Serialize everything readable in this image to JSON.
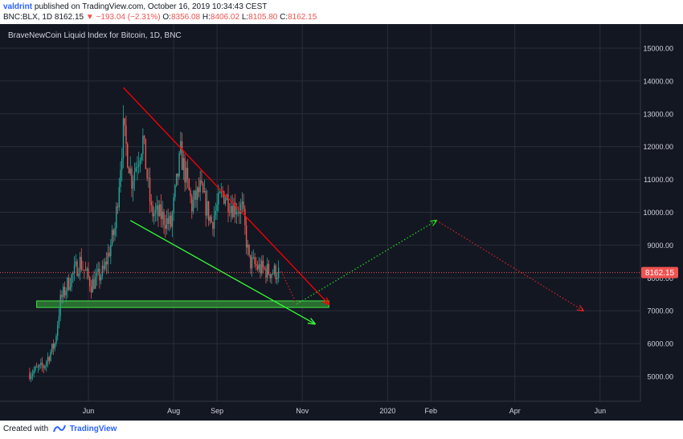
{
  "header": {
    "author": "valdrint",
    "published": "published on TradingView.com, October 16, 2019 10:34:43 CEST",
    "symbol": "BNC:BLX, 1D",
    "last_price": "8162.15",
    "change_arrow": "▼",
    "change": "−193.04 (−2.31%)",
    "open_label": "O:",
    "open": "8356.08",
    "high_label": "H:",
    "high": "8406.02",
    "low_label": "L:",
    "low": "8105.80",
    "close_label": "C:",
    "close": "8162.15"
  },
  "footer": {
    "created_with": "Created with",
    "brand": "TradingView"
  },
  "colors": {
    "background": "#131722",
    "grid": "#2a2e39",
    "axis_text": "#d1d4dc",
    "up": "#26a69a",
    "down": "#ef5350",
    "trend_red": "#ff0000",
    "trend_green": "#33ff33",
    "zone_fill": "#2e7d32",
    "zone_border": "#43e443",
    "projection_green": "#22dd22",
    "projection_red": "#dd2222",
    "price_line": "#ef5350"
  },
  "chart_data": {
    "type": "candlestick",
    "title": "BraveNewCoin Liquid Index for Bitcoin, 1D, BNC",
    "yticks": [
      "5000.00",
      "6000.00",
      "7000.00",
      "8000.00",
      "9000.00",
      "10000.00",
      "11000.00",
      "12000.00",
      "13000.00",
      "14000.00",
      "15000.00"
    ],
    "xticks": [
      "Jun",
      "Aug",
      "Sep",
      "Nov",
      "2020",
      "Feb",
      "Apr",
      "Jun"
    ],
    "last_price_label": "8162.15",
    "last_price": 8162.15,
    "price_range_visible": [
      4600,
      15600
    ],
    "trend_lines": [
      {
        "name": "descending resistance",
        "from": [
          "2019-06-26",
          13800
        ],
        "to": [
          "2019-11-20",
          7200
        ],
        "arrow": true
      },
      {
        "name": "descending support",
        "from": [
          "2019-07-01",
          9750
        ],
        "to": [
          "2019-11-10",
          6600
        ],
        "arrow": true
      }
    ],
    "support_zone": {
      "from": "2019-04-25",
      "to": "2019-11-20",
      "low": 7100,
      "high": 7300
    },
    "projections": [
      {
        "name": "dip",
        "style": "dotted",
        "points": [
          [
            "2019-10-17",
            8200
          ],
          [
            "2019-10-28",
            7200
          ]
        ]
      },
      {
        "name": "rally",
        "style": "dotted",
        "points": [
          [
            "2019-10-28",
            7200
          ],
          [
            "2020-02-05",
            9750
          ]
        ]
      },
      {
        "name": "decline",
        "style": "dotted",
        "points": [
          [
            "2020-02-05",
            9750
          ],
          [
            "2020-05-20",
            7000
          ]
        ]
      }
    ],
    "series_outline": {
      "name": "BLX daily candles (approximate closes)",
      "dates": [
        "2019-04-20",
        "2019-04-30",
        "2019-05-08",
        "2019-05-12",
        "2019-05-17",
        "2019-05-26",
        "2019-06-03",
        "2019-06-12",
        "2019-06-20",
        "2019-06-26",
        "2019-07-02",
        "2019-07-10",
        "2019-07-16",
        "2019-07-23",
        "2019-07-30",
        "2019-08-06",
        "2019-08-14",
        "2019-08-20",
        "2019-08-28",
        "2019-09-05",
        "2019-09-12",
        "2019-09-19",
        "2019-09-24",
        "2019-10-01",
        "2019-10-08",
        "2019-10-16"
      ],
      "close": [
        5100,
        5300,
        6000,
        7300,
        7800,
        8500,
        7800,
        8200,
        9500,
        12500,
        11000,
        12200,
        10000,
        9900,
        9600,
        11800,
        10200,
        10700,
        9700,
        10600,
        10200,
        10100,
        8500,
        8300,
        8200,
        8162
      ]
    }
  }
}
